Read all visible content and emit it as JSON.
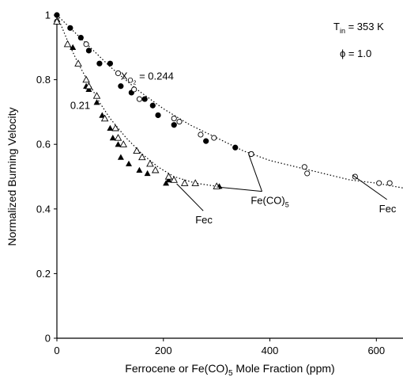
{
  "chart_data": {
    "type": "scatter",
    "title": "",
    "xlabel_parts": [
      "Ferrocene or Fe(CO)",
      "5",
      " Mole Fraction (ppm)"
    ],
    "ylabel": "Normalized Burning Velocity",
    "xlim": [
      0,
      650
    ],
    "ylim": [
      0,
      1
    ],
    "x_ticks": [
      0,
      200,
      400,
      600
    ],
    "x_tick_labels": [
      "0",
      "200",
      "400",
      "600"
    ],
    "y_ticks": [
      0,
      0.2,
      0.4,
      0.6,
      0.8,
      1
    ],
    "y_tick_labels": [
      "0",
      "0.2",
      "0.4",
      "0.6",
      "0.8",
      "1"
    ],
    "grid": false,
    "conditions": {
      "temp_parts": [
        "T",
        "in",
        " = 353 K"
      ],
      "phi": "ϕ = 1.0"
    },
    "series": [
      {
        "marker": "filled-circle",
        "x": [
          0,
          25,
          45,
          60,
          80,
          100,
          120,
          140,
          165,
          180,
          190,
          220,
          280,
          335,
          365
        ],
        "y": [
          1.0,
          0.96,
          0.93,
          0.89,
          0.85,
          0.85,
          0.78,
          0.76,
          0.74,
          0.72,
          0.69,
          0.66,
          0.61,
          0.59,
          0.57
        ]
      },
      {
        "marker": "open-circle",
        "x": [
          0,
          55,
          115,
          145,
          155,
          220,
          230,
          270,
          295,
          365,
          465,
          470,
          560,
          605,
          625
        ],
        "y": [
          0.98,
          0.91,
          0.82,
          0.77,
          0.74,
          0.68,
          0.67,
          0.63,
          0.62,
          0.57,
          0.53,
          0.51,
          0.5,
          0.48,
          0.48
        ]
      },
      {
        "marker": "filled-triangle",
        "x": [
          0,
          20,
          30,
          40,
          55,
          60,
          75,
          85,
          100,
          105,
          115,
          120,
          135,
          155,
          170,
          205,
          210,
          305
        ],
        "y": [
          0.98,
          0.91,
          0.9,
          0.85,
          0.78,
          0.77,
          0.73,
          0.69,
          0.65,
          0.62,
          0.6,
          0.56,
          0.54,
          0.52,
          0.51,
          0.48,
          0.49,
          0.47
        ]
      },
      {
        "marker": "open-triangle",
        "x": [
          0,
          20,
          40,
          55,
          60,
          75,
          90,
          110,
          115,
          125,
          150,
          160,
          175,
          185,
          210,
          220,
          240,
          260,
          300
        ],
        "y": [
          0.98,
          0.91,
          0.85,
          0.8,
          0.78,
          0.75,
          0.68,
          0.65,
          0.62,
          0.6,
          0.58,
          0.56,
          0.54,
          0.52,
          0.5,
          0.49,
          0.48,
          0.48,
          0.47
        ]
      }
    ],
    "fit_curves": [
      {
        "style": "dotted",
        "x": [
          0,
          50,
          100,
          150,
          200,
          250,
          300,
          350,
          400,
          450,
          500,
          550,
          600,
          650
        ],
        "y": [
          1.0,
          0.92,
          0.84,
          0.77,
          0.71,
          0.66,
          0.62,
          0.58,
          0.55,
          0.53,
          0.51,
          0.49,
          0.48,
          0.465
        ]
      },
      {
        "style": "dotted",
        "x": [
          0,
          20,
          40,
          60,
          80,
          100,
          130,
          160,
          190,
          220,
          260,
          300
        ],
        "y": [
          1.0,
          0.92,
          0.85,
          0.79,
          0.73,
          0.68,
          0.62,
          0.57,
          0.53,
          0.5,
          0.48,
          0.47
        ]
      }
    ],
    "annotations": {
      "xo2_high": {
        "prefix": "X",
        "subscript": "O",
        "subscript2": "2",
        "value": " = 0.244",
        "x": 120,
        "y": 0.8
      },
      "xo2_low": {
        "text": "0.21",
        "x": 25,
        "y": 0.71
      },
      "feco5": {
        "parts": [
          "Fe(CO)",
          "5"
        ],
        "x": 400,
        "y": 0.415,
        "pointers": [
          [
            360,
            0.57
          ],
          [
            300,
            0.468
          ]
        ]
      },
      "fec_right": {
        "text": "Fec",
        "x": 605,
        "y": 0.39,
        "pointer": [
          555,
          0.505
        ]
      },
      "fec_left": {
        "text": "Fec",
        "x": 260,
        "y": 0.355,
        "pointer": [
          225,
          0.478
        ]
      }
    }
  }
}
